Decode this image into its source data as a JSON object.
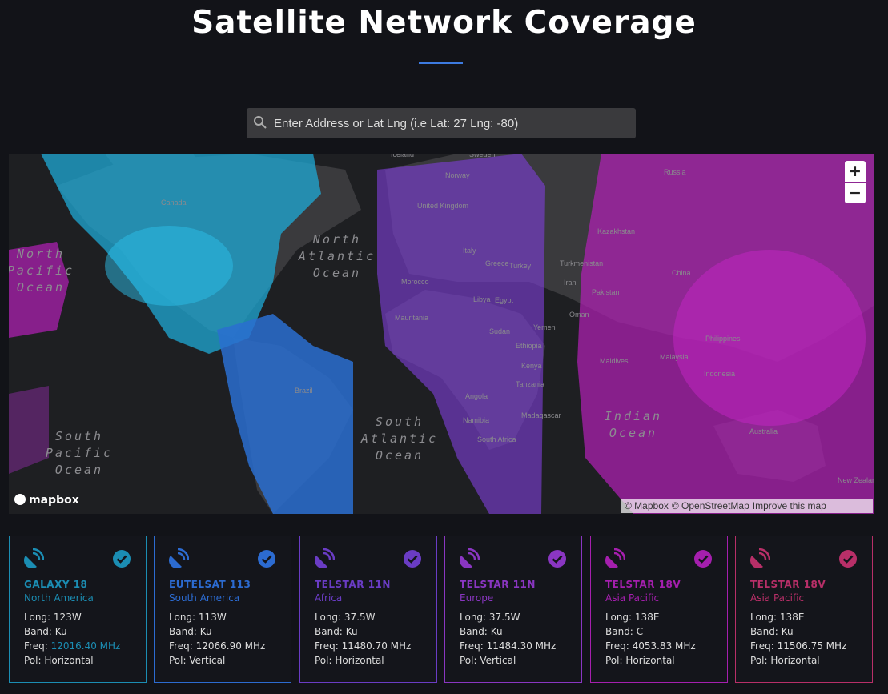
{
  "header": {
    "title": "Satellite Network Coverage"
  },
  "search": {
    "placeholder": "Enter Address or Lat Lng (i.e Lat: 27 Lng: -80)"
  },
  "map": {
    "zoom_in": "+",
    "zoom_out": "−",
    "logo": "mapbox",
    "attribution": [
      "© Mapbox",
      "© OpenStreetMap",
      "Improve this map"
    ],
    "oceans": [
      [
        "North",
        "Pacific",
        "Ocean"
      ],
      [
        "North",
        "Atlantic",
        "Ocean"
      ],
      [
        "South",
        "Pacific",
        "Ocean"
      ],
      [
        "South",
        "Atlantic",
        "Ocean"
      ],
      [
        "Indian",
        "Ocean"
      ]
    ],
    "places": [
      "Iceland",
      "Norway",
      "Sweden",
      "United Kingdom",
      "Russia",
      "Kazakhstan",
      "Turkmenistan",
      "Iran",
      "Pakistan",
      "China",
      "Morocco",
      "Libya",
      "Egypt",
      "Mauritania",
      "Sudan",
      "Yemen",
      "Oman",
      "Ethiopia",
      "Kenya",
      "Tanzania",
      "Angola",
      "Namibia",
      "South Africa",
      "Madagascar",
      "Maldives",
      "Malaysia",
      "Philippines",
      "Indonesia",
      "Australia",
      "New Zealand",
      "Brazil",
      "Canada",
      "Italy",
      "Greece",
      "Turkey"
    ]
  },
  "field_labels": [
    "Long:",
    "Band:",
    "Freq:",
    "Pol:"
  ],
  "cards": [
    {
      "name": "GALAXY 18",
      "region": "North America",
      "color": "#1b8db3",
      "values": [
        "123W",
        "Ku",
        "12016.40 MHz",
        "Horizontal"
      ],
      "highlight_freq": true
    },
    {
      "name": "EUTELSAT 113",
      "region": "South America",
      "color": "#2c6bd1",
      "values": [
        "113W",
        "Ku",
        "12066.90 MHz",
        "Vertical"
      ],
      "highlight_freq": false
    },
    {
      "name": "TELSTAR 11N",
      "region": "Africa",
      "color": "#6a3cc4",
      "values": [
        "37.5W",
        "Ku",
        "11480.70 MHz",
        "Horizontal"
      ],
      "highlight_freq": false
    },
    {
      "name": "TELSTAR 11N",
      "region": "Europe",
      "color": "#8a36c2",
      "values": [
        "37.5W",
        "Ku",
        "11484.30 MHz",
        "Vertical"
      ],
      "highlight_freq": false
    },
    {
      "name": "TELSTAR 18V",
      "region": "Asia Pacific",
      "color": "#a51fae",
      "values": [
        "138E",
        "C",
        "4053.83 MHz",
        "Horizontal"
      ],
      "highlight_freq": false
    },
    {
      "name": "TELSTAR 18V",
      "region": "Asia Pacific",
      "color": "#b82f68",
      "values": [
        "138E",
        "Ku",
        "11506.75 MHz",
        "Horizontal"
      ],
      "highlight_freq": false
    }
  ]
}
